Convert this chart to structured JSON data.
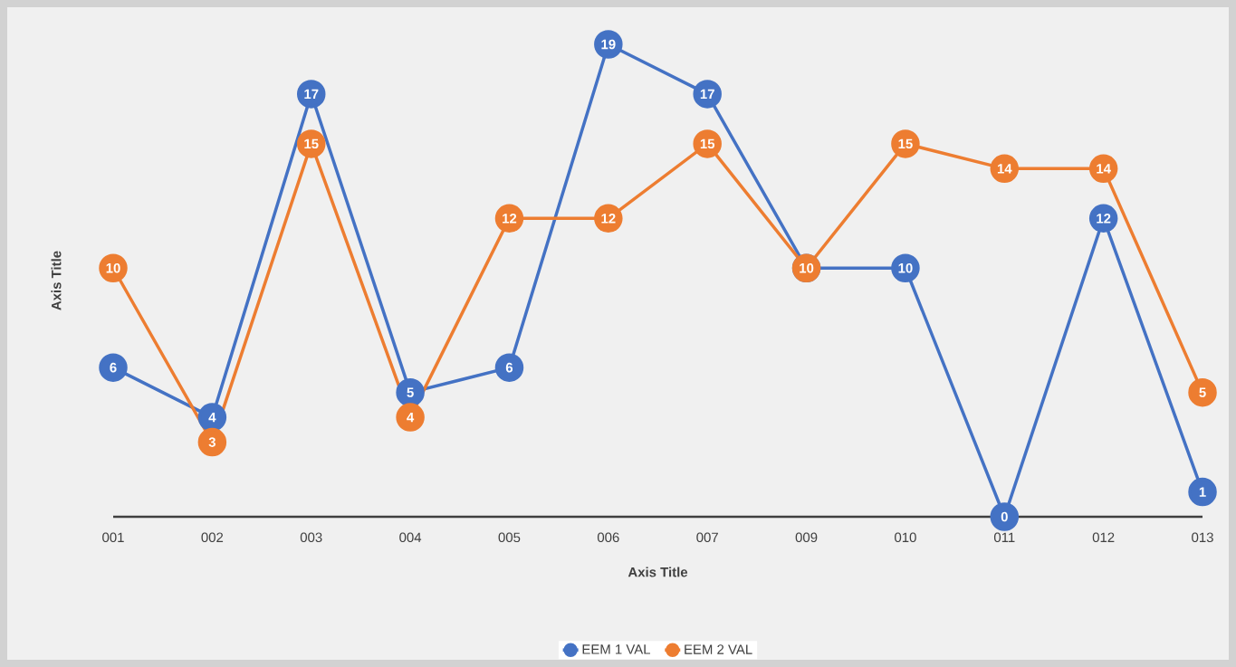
{
  "chart_data": {
    "type": "line",
    "xlabel": "Axis Title",
    "ylabel": "Axis Title",
    "categories": [
      "001",
      "002",
      "003",
      "004",
      "005",
      "006",
      "007",
      "009",
      "010",
      "011",
      "012",
      "013"
    ],
    "series": [
      {
        "name": "EEM 1 VAL",
        "color": "#4472c4",
        "values": [
          6,
          4,
          17,
          5,
          6,
          19,
          17,
          10,
          10,
          0,
          12,
          1
        ],
        "value_labels": [
          "6",
          "4",
          "17",
          "5",
          "6",
          "19",
          "17",
          null,
          "10",
          "0",
          "12",
          "1"
        ]
      },
      {
        "name": "EEM 2 VAL",
        "color": "#ed7d31",
        "values": [
          10,
          3,
          15,
          4,
          12,
          12,
          15,
          10,
          15,
          14,
          14,
          5
        ],
        "value_labels": [
          "10",
          "3",
          "15",
          "4",
          "12",
          "12",
          "15",
          "10",
          "15",
          "14",
          "14",
          "5"
        ]
      }
    ],
    "tick_labels": "x",
    "legend": "bottom",
    "marker": "circle",
    "line_style": "solid"
  }
}
